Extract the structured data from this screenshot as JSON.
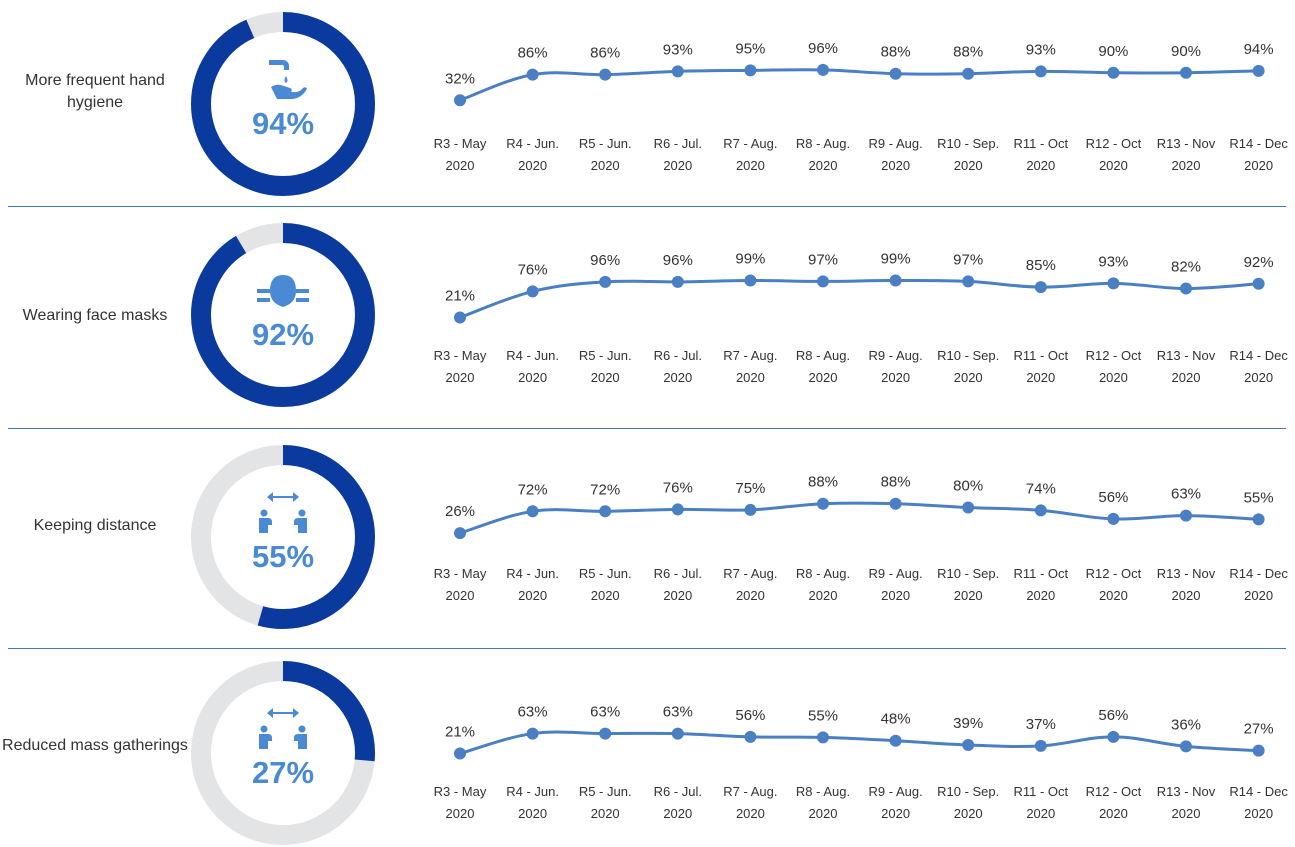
{
  "colors": {
    "donut_fill": "#0a3a9e",
    "donut_track": "#e3e4e6",
    "line": "#4a7fc4",
    "percent_text": "#4a8ad4",
    "icon": "#4a8ad4",
    "text": "#333333",
    "divider": "#4a78b8"
  },
  "chart_data": [
    {
      "type": "line",
      "label": "More frequent hand hygiene",
      "donut_value": "94%",
      "donut_fraction": 0.94,
      "icon": "hand-washing-icon",
      "series": [
        {
          "x": [
            "R3 - May 2020",
            "R4 - Jun. 2020",
            "R5 - Jun. 2020",
            "R6 - Jul. 2020",
            "R7 - Aug. 2020",
            "R8 - Aug. 2020",
            "R9 - Aug. 2020",
            "R10 - Sep. 2020",
            "R11 - Oct 2020",
            "R12 - Oct 2020",
            "R13 - Nov 2020",
            "R14 - Dec 2020"
          ],
          "values": [
            32,
            86,
            86,
            93,
            95,
            96,
            88,
            88,
            93,
            90,
            90,
            94
          ],
          "labels": [
            "32%",
            "86%",
            "86%",
            "93%",
            "95%",
            "96%",
            "88%",
            "88%",
            "93%",
            "90%",
            "90%",
            "94%"
          ]
        }
      ]
    },
    {
      "type": "line",
      "label": "Wearing face masks",
      "donut_value": "92%",
      "donut_fraction": 0.92,
      "icon": "face-mask-icon",
      "series": [
        {
          "x": [
            "R3 - May 2020",
            "R4 - Jun. 2020",
            "R5 - Jun. 2020",
            "R6 - Jul. 2020",
            "R7 - Aug. 2020",
            "R8 - Aug. 2020",
            "R9 - Aug. 2020",
            "R10 - Sep. 2020",
            "R11 - Oct 2020",
            "R12 - Oct 2020",
            "R13 - Nov 2020",
            "R14 - Dec 2020"
          ],
          "values": [
            21,
            76,
            96,
            96,
            99,
            97,
            99,
            97,
            85,
            93,
            82,
            92
          ],
          "labels": [
            "21%",
            "76%",
            "96%",
            "96%",
            "99%",
            "97%",
            "99%",
            "97%",
            "85%",
            "93%",
            "82%",
            "92%"
          ]
        }
      ]
    },
    {
      "type": "line",
      "label": "Keeping distance",
      "donut_value": "55%",
      "donut_fraction": 0.55,
      "icon": "social-distance-icon",
      "series": [
        {
          "x": [
            "R3 - May 2020",
            "R4 - Jun. 2020",
            "R5 - Jun. 2020",
            "R6 - Jul. 2020",
            "R7 - Aug. 2020",
            "R8 - Aug. 2020",
            "R9 - Aug. 2020",
            "R10 - Sep. 2020",
            "R11 - Oct 2020",
            "R12 - Oct 2020",
            "R13 - Nov 2020",
            "R14 - Dec 2020"
          ],
          "values": [
            26,
            72,
            72,
            76,
            75,
            88,
            88,
            80,
            74,
            56,
            63,
            55
          ],
          "labels": [
            "26%",
            "72%",
            "72%",
            "76%",
            "75%",
            "88%",
            "88%",
            "80%",
            "74%",
            "56%",
            "63%",
            "55%"
          ]
        }
      ]
    },
    {
      "type": "line",
      "label": "Reduced mass gatherings",
      "donut_value": "27%",
      "donut_fraction": 0.27,
      "icon": "social-distance-icon",
      "series": [
        {
          "x": [
            "R3 - May 2020",
            "R4 - Jun. 2020",
            "R5 - Jun. 2020",
            "R6 - Jul. 2020",
            "R7 - Aug. 2020",
            "R8 - Aug. 2020",
            "R9 - Aug. 2020",
            "R10 - Sep. 2020",
            "R11 - Oct 2020",
            "R12 - Oct 2020",
            "R13 - Nov 2020",
            "R14 - Dec 2020"
          ],
          "values": [
            21,
            63,
            63,
            63,
            56,
            55,
            48,
            39,
            37,
            56,
            36,
            27
          ],
          "labels": [
            "21%",
            "63%",
            "63%",
            "63%",
            "56%",
            "55%",
            "48%",
            "39%",
            "37%",
            "56%",
            "36%",
            "27%"
          ]
        }
      ]
    }
  ]
}
